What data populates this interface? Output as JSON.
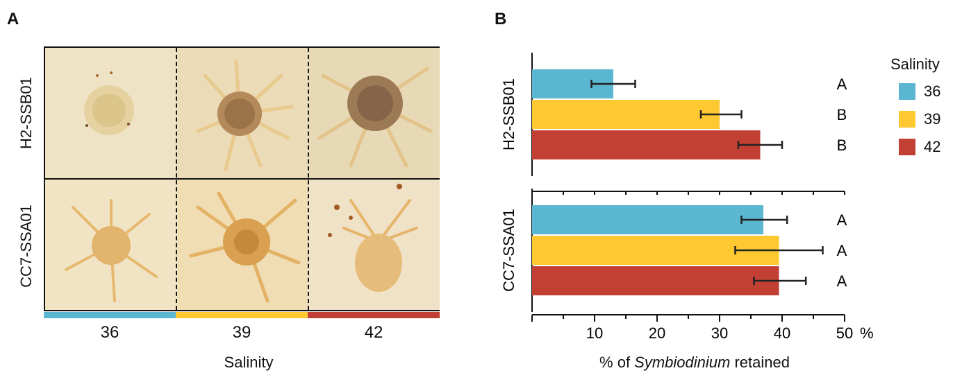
{
  "panel_a": {
    "letter": "A",
    "rows": [
      "H2-SSB01",
      "CC7-SSA01"
    ],
    "salinity_ticks": [
      "36",
      "39",
      "42"
    ],
    "xlabel": "Salinity",
    "photo_tones": [
      [
        "#efe3c6",
        "#ebdcb7",
        "#e8d9b6"
      ],
      [
        "#f1e4c4",
        "#f0ddb3",
        "#f0e2c6"
      ]
    ]
  },
  "panel_b": {
    "letter": "B"
  },
  "colors": {
    "36": "#5bb6d1",
    "39": "#fdc830",
    "42": "#c23f34"
  },
  "legend": {
    "title": "Salinity",
    "items": [
      {
        "label": "36",
        "color": "#5bb6d1"
      },
      {
        "label": "39",
        "color": "#fdc830"
      },
      {
        "label": "42",
        "color": "#c23f34"
      }
    ]
  },
  "chart_data": {
    "type": "bar",
    "orientation": "horizontal",
    "xlabel_prefix": "% of ",
    "xlabel_italic": "Symbiodinium",
    "xlabel_suffix": " retained",
    "xlim": [
      0,
      50
    ],
    "xticks": [
      10,
      20,
      30,
      40,
      50
    ],
    "xtick_labels": [
      "10",
      "20",
      "30",
      "40",
      "50"
    ],
    "x_unit": "%",
    "groups": [
      {
        "name": "H2-SSB01",
        "bars": [
          {
            "salinity": "36",
            "value": 13.0,
            "err_low": 9.5,
            "err_high": 16.5,
            "letter": "A"
          },
          {
            "salinity": "39",
            "value": 30.0,
            "err_low": 27.0,
            "err_high": 33.5,
            "letter": "B"
          },
          {
            "salinity": "42",
            "value": 36.5,
            "err_low": 33.0,
            "err_high": 40.0,
            "letter": "B"
          }
        ]
      },
      {
        "name": "CC7-SSA01",
        "bars": [
          {
            "salinity": "36",
            "value": 37.0,
            "err_low": 33.5,
            "err_high": 40.8,
            "letter": "A"
          },
          {
            "salinity": "39",
            "value": 39.5,
            "err_low": 32.5,
            "err_high": 46.5,
            "letter": "A"
          },
          {
            "salinity": "42",
            "value": 39.5,
            "err_low": 35.5,
            "err_high": 43.8,
            "letter": "A"
          }
        ]
      }
    ]
  }
}
